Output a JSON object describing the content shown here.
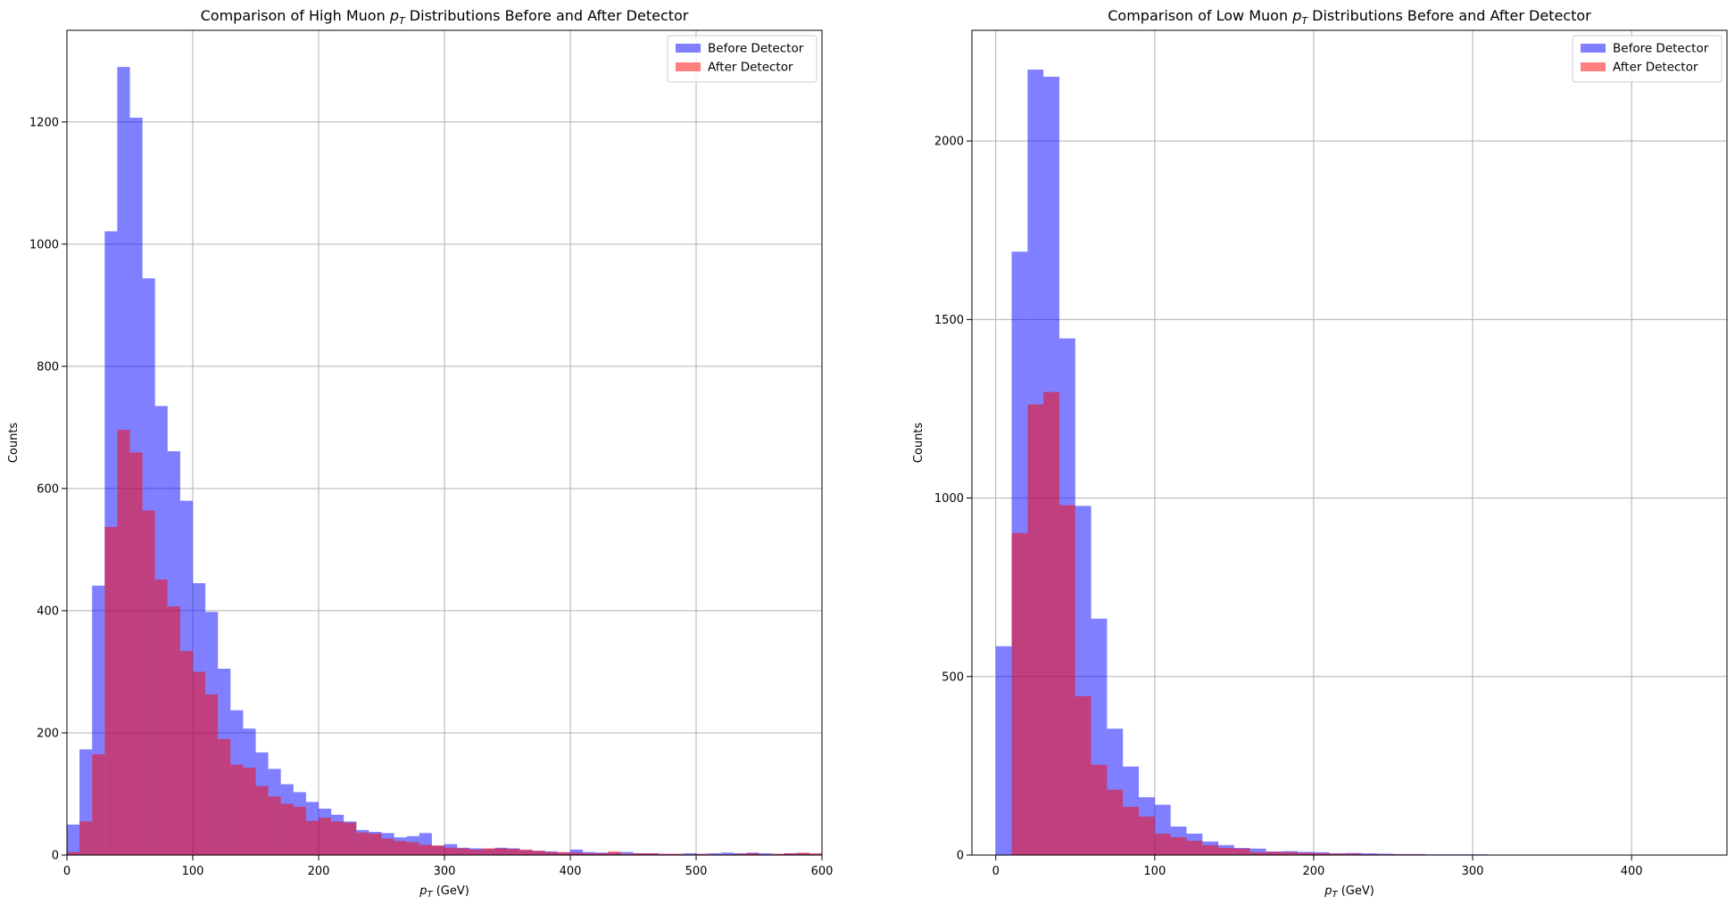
{
  "colors": {
    "before": "#0000ff",
    "after": "#ff0000",
    "grid": "#b0b0b0",
    "frame": "#000000"
  },
  "chart_data": [
    {
      "type": "bar",
      "title": "Comparison of High Muon p_T Distributions Before and After Detector",
      "title_parts": [
        "Comparison of High Muon ",
        "p",
        "T",
        " Distributions Before and After Detector"
      ],
      "xlabel_parts": [
        "p",
        "T",
        " (GeV)"
      ],
      "ylabel": "Counts",
      "xlim": [
        0,
        600
      ],
      "ylim": [
        0,
        1350
      ],
      "xticks": [
        0,
        100,
        200,
        300,
        400,
        500,
        600
      ],
      "yticks": [
        0,
        200,
        400,
        600,
        800,
        1000,
        1200
      ],
      "grid": true,
      "legend": "top-right",
      "bin_start": 0,
      "bin_width": 10,
      "series": [
        {
          "name": "Before Detector",
          "color_key": "before",
          "values": [
            50,
            173,
            441,
            1021,
            1290,
            1207,
            944,
            735,
            661,
            580,
            445,
            398,
            305,
            237,
            207,
            168,
            141,
            116,
            103,
            87,
            76,
            66,
            55,
            41,
            38,
            36,
            29,
            31,
            36,
            15,
            18,
            12,
            11,
            10,
            12,
            11,
            8,
            7,
            6,
            4,
            9,
            5,
            4,
            4,
            5,
            3,
            3,
            2,
            2,
            3,
            2,
            3,
            4,
            3,
            4,
            3,
            2,
            3,
            3,
            2
          ]
        },
        {
          "name": "After Detector",
          "color_key": "after",
          "values": [
            5,
            55,
            165,
            537,
            696,
            659,
            564,
            451,
            407,
            334,
            300,
            263,
            190,
            148,
            143,
            113,
            96,
            84,
            79,
            56,
            61,
            55,
            53,
            37,
            35,
            27,
            23,
            21,
            17,
            16,
            12,
            11,
            9,
            11,
            11,
            10,
            9,
            7,
            5,
            5,
            4,
            3,
            3,
            6,
            2,
            3,
            3,
            2,
            2,
            1,
            2,
            1,
            1,
            2,
            3,
            1,
            2,
            3,
            4,
            3
          ]
        }
      ]
    },
    {
      "type": "bar",
      "title": "Comparison of Low Muon p_T Distributions Before and After Detector",
      "title_parts": [
        "Comparison of Low Muon ",
        "p",
        "T",
        " Distributions Before and After Detector"
      ],
      "xlabel_parts": [
        "p",
        "T",
        " (GeV)"
      ],
      "ylabel": "Counts",
      "xlim": [
        -15,
        460
      ],
      "ylim": [
        0,
        2310
      ],
      "xticks": [
        0,
        100,
        200,
        300,
        400
      ],
      "yticks": [
        0,
        500,
        1000,
        1500,
        2000
      ],
      "grid": true,
      "legend": "top-right",
      "bin_start": 0,
      "bin_width": 10,
      "series": [
        {
          "name": "Before Detector",
          "color_key": "before",
          "values": [
            585,
            1690,
            2200,
            2180,
            1447,
            978,
            662,
            354,
            248,
            162,
            141,
            80,
            60,
            38,
            28,
            20,
            18,
            10,
            11,
            9,
            8,
            5,
            6,
            5,
            4,
            3,
            3,
            2,
            2,
            2,
            2,
            1,
            1,
            1,
            1,
            1,
            1,
            1,
            0,
            0,
            0,
            1,
            0,
            1
          ]
        },
        {
          "name": "After Detector",
          "color_key": "after",
          "values": [
            0,
            902,
            1262,
            1297,
            980,
            445,
            253,
            183,
            135,
            108,
            60,
            50,
            40,
            28,
            20,
            18,
            8,
            9,
            8,
            6,
            5,
            4,
            4,
            2,
            2,
            2,
            2,
            1,
            1,
            1,
            1,
            1,
            0,
            1,
            0,
            1,
            0,
            0,
            0,
            0,
            0,
            0,
            0,
            1
          ]
        }
      ]
    }
  ]
}
